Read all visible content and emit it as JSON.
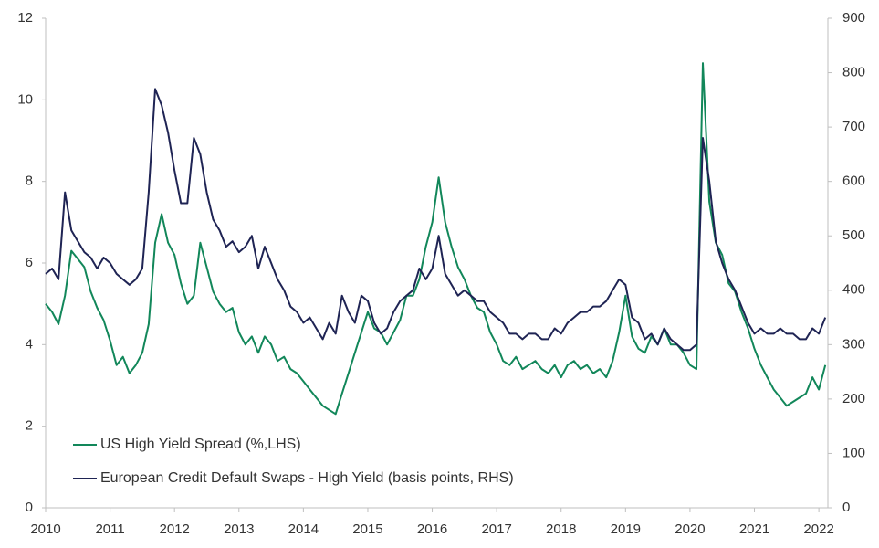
{
  "chart_data": {
    "type": "line",
    "x": [
      2010.0,
      2010.1,
      2010.2,
      2010.3,
      2010.4,
      2010.5,
      2010.6,
      2010.7,
      2010.8,
      2010.9,
      2011.0,
      2011.1,
      2011.2,
      2011.3,
      2011.4,
      2011.5,
      2011.6,
      2011.7,
      2011.8,
      2011.9,
      2012.0,
      2012.1,
      2012.2,
      2012.3,
      2012.4,
      2012.5,
      2012.6,
      2012.7,
      2012.8,
      2012.9,
      2013.0,
      2013.1,
      2013.2,
      2013.3,
      2013.4,
      2013.5,
      2013.6,
      2013.7,
      2013.8,
      2013.9,
      2014.0,
      2014.1,
      2014.2,
      2014.3,
      2014.4,
      2014.5,
      2014.6,
      2014.7,
      2014.8,
      2014.9,
      2015.0,
      2015.1,
      2015.2,
      2015.3,
      2015.4,
      2015.5,
      2015.6,
      2015.7,
      2015.8,
      2015.9,
      2016.0,
      2016.1,
      2016.2,
      2016.3,
      2016.4,
      2016.5,
      2016.6,
      2016.7,
      2016.8,
      2016.9,
      2017.0,
      2017.1,
      2017.2,
      2017.3,
      2017.4,
      2017.5,
      2017.6,
      2017.7,
      2017.8,
      2017.9,
      2018.0,
      2018.1,
      2018.2,
      2018.3,
      2018.4,
      2018.5,
      2018.6,
      2018.7,
      2018.8,
      2018.9,
      2019.0,
      2019.1,
      2019.2,
      2019.3,
      2019.4,
      2019.5,
      2019.6,
      2019.7,
      2019.8,
      2019.9,
      2020.0,
      2020.1,
      2020.2,
      2020.3,
      2020.4,
      2020.5,
      2020.6,
      2020.7,
      2020.8,
      2020.9,
      2021.0,
      2021.1,
      2021.2,
      2021.3,
      2021.4,
      2021.5,
      2021.6,
      2021.7,
      2021.8,
      2021.9,
      2022.0,
      2022.1
    ],
    "series": [
      {
        "name": "US High Yield Spread (%,LHS)",
        "color": "#12875a",
        "values": [
          5.0,
          4.8,
          4.5,
          5.2,
          6.3,
          6.1,
          5.9,
          5.3,
          4.9,
          4.6,
          4.1,
          3.5,
          3.7,
          3.3,
          3.5,
          3.8,
          4.5,
          6.5,
          7.2,
          6.5,
          6.2,
          5.5,
          5.0,
          5.2,
          6.5,
          5.9,
          5.3,
          5.0,
          4.8,
          4.9,
          4.3,
          4.0,
          4.2,
          3.8,
          4.2,
          4.0,
          3.6,
          3.7,
          3.4,
          3.3,
          3.1,
          2.9,
          2.7,
          2.5,
          2.4,
          2.3,
          2.8,
          3.3,
          3.8,
          4.3,
          4.8,
          4.4,
          4.3,
          4.0,
          4.3,
          4.6,
          5.2,
          5.2,
          5.6,
          6.4,
          7.0,
          8.1,
          7.0,
          6.4,
          5.9,
          5.6,
          5.2,
          4.9,
          4.8,
          4.3,
          4.0,
          3.6,
          3.5,
          3.7,
          3.4,
          3.5,
          3.6,
          3.4,
          3.3,
          3.5,
          3.2,
          3.5,
          3.6,
          3.4,
          3.5,
          3.3,
          3.4,
          3.2,
          3.6,
          4.3,
          5.2,
          4.2,
          3.9,
          3.8,
          4.2,
          4.0,
          4.4,
          4.0,
          4.0,
          3.8,
          3.5,
          3.4,
          10.9,
          7.5,
          6.5,
          6.2,
          5.5,
          5.3,
          4.8,
          4.4,
          3.9,
          3.5,
          3.2,
          2.9,
          2.7,
          2.5,
          2.6,
          2.7,
          2.8,
          3.2,
          2.9,
          3.5
        ]
      },
      {
        "name": "European Credit Default Swaps - High Yield (basis points, RHS)",
        "color": "#1f2454",
        "axis": "y2",
        "values": [
          430,
          440,
          420,
          580,
          510,
          490,
          470,
          460,
          440,
          460,
          450,
          430,
          420,
          410,
          420,
          440,
          580,
          770,
          740,
          690,
          620,
          560,
          560,
          680,
          650,
          580,
          530,
          510,
          480,
          490,
          470,
          480,
          500,
          440,
          480,
          450,
          420,
          400,
          370,
          360,
          340,
          350,
          330,
          310,
          340,
          320,
          390,
          360,
          340,
          390,
          380,
          340,
          320,
          330,
          360,
          380,
          390,
          400,
          440,
          420,
          440,
          500,
          430,
          410,
          390,
          400,
          390,
          380,
          380,
          360,
          350,
          340,
          320,
          320,
          310,
          320,
          320,
          310,
          310,
          330,
          320,
          340,
          350,
          360,
          360,
          370,
          370,
          380,
          400,
          420,
          410,
          350,
          340,
          310,
          320,
          300,
          330,
          310,
          300,
          290,
          290,
          300,
          680,
          600,
          490,
          450,
          420,
          400,
          370,
          340,
          320,
          330,
          320,
          320,
          330,
          320,
          320,
          310,
          310,
          330,
          320,
          350
        ]
      }
    ],
    "xlim": [
      2010,
      2022.14
    ],
    "xticks": [
      2010,
      2011,
      2012,
      2013,
      2014,
      2015,
      2016,
      2017,
      2018,
      2019,
      2020,
      2021,
      2022
    ],
    "ylim": [
      0,
      12
    ],
    "yticks": [
      0,
      2,
      4,
      6,
      8,
      10,
      12
    ],
    "y2lim": [
      0,
      900
    ],
    "y2ticks": [
      0,
      100,
      200,
      300,
      400,
      500,
      600,
      700,
      800,
      900
    ],
    "grid": false,
    "legend": "lower left"
  }
}
